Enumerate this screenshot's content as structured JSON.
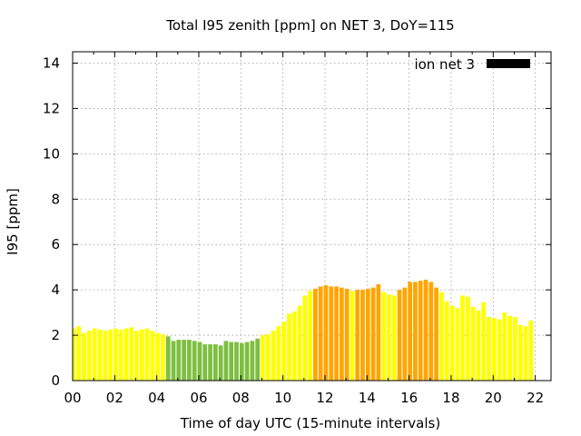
{
  "chart_data": {
    "type": "bar",
    "title": "Total I95 zenith [ppm] on NET 3, DoY=115",
    "xlabel": "Time of day UTC (15-minute intervals)",
    "ylabel": "I95 [ppm]",
    "xlim": [
      0,
      22.75
    ],
    "ylim": [
      0,
      14.5
    ],
    "x_ticks": [
      "00",
      "02",
      "04",
      "06",
      "08",
      "10",
      "12",
      "14",
      "16",
      "18",
      "20",
      "22"
    ],
    "y_ticks": [
      "0",
      "2",
      "4",
      "6",
      "8",
      "10",
      "12",
      "14"
    ],
    "grid": true,
    "legend_position": "top-right",
    "series": [
      {
        "name": "ion net 3",
        "legend_color": "#000000",
        "x_start": 0,
        "x_step": 0.25,
        "values": [
          2.3,
          2.4,
          2.1,
          2.2,
          2.3,
          2.25,
          2.2,
          2.25,
          2.3,
          2.25,
          2.3,
          2.35,
          2.2,
          2.25,
          2.3,
          2.2,
          2.1,
          2.05,
          1.95,
          1.75,
          1.8,
          1.8,
          1.8,
          1.75,
          1.7,
          1.6,
          1.6,
          1.6,
          1.55,
          1.75,
          1.7,
          1.7,
          1.65,
          1.7,
          1.75,
          1.85,
          2.0,
          2.05,
          2.2,
          2.4,
          2.6,
          2.95,
          3.05,
          3.3,
          3.75,
          3.95,
          4.05,
          4.15,
          4.2,
          4.15,
          4.15,
          4.1,
          4.05,
          3.95,
          4.0,
          4.0,
          4.05,
          4.1,
          4.25,
          3.9,
          3.8,
          3.75,
          4.0,
          4.1,
          4.35,
          4.35,
          4.4,
          4.45,
          4.35,
          4.1,
          3.9,
          3.5,
          3.3,
          3.2,
          3.75,
          3.7,
          3.25,
          3.1,
          3.45,
          2.8,
          2.75,
          2.7,
          3.0,
          2.85,
          2.8,
          2.45,
          2.4,
          2.65
        ],
        "level_colors": {
          "low": "#7dbf40",
          "moderate": "#ffff00",
          "elevated": "#ffa500"
        }
      }
    ]
  }
}
